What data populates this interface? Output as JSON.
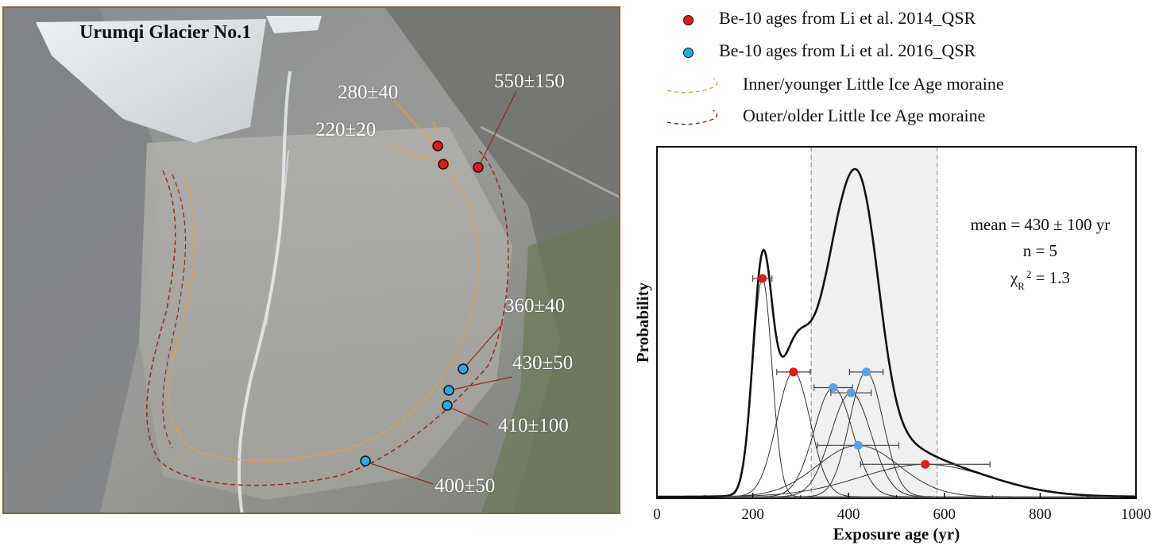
{
  "photo": {
    "title": "Urumqi Glacier No.1",
    "samples": [
      {
        "label": "280±40",
        "dataset": "Li et al. 2014"
      },
      {
        "label": "220±20",
        "dataset": "Li et al. 2014"
      },
      {
        "label": "550±150",
        "dataset": "Li et al. 2014"
      },
      {
        "label": "360±40",
        "dataset": "Li et al. 2016"
      },
      {
        "label": "430±50",
        "dataset": "Li et al. 2016"
      },
      {
        "label": "410±100",
        "dataset": "Li et al. 2016"
      },
      {
        "label": "400±50",
        "dataset": "Li et al. 2016"
      }
    ]
  },
  "legend": {
    "items": [
      {
        "label": "Be-10 ages from Li et al. 2014_QSR",
        "symbol": "red-dot"
      },
      {
        "label": "Be-10 ages from Li et al. 2016_QSR",
        "symbol": "blue-dot"
      },
      {
        "label": "Inner/younger Little Ice Age moraine",
        "symbol": "orange-dashed-line"
      },
      {
        "label": "Outer/older Little Ice Age moraine",
        "symbol": "brown-dashed-line"
      }
    ]
  },
  "colors": {
    "red_dot": "#e3191c",
    "blue_dot": "#29a9e0",
    "blue_point": "#5aa0e6",
    "inner_moraine": "#f0a030",
    "outer_moraine": "#8b2a1a",
    "frame": "#a05a2c",
    "shade": "#f0f0f0"
  },
  "chart_data": {
    "type": "line",
    "xlabel": "Exposure age (yr)",
    "ylabel": "Probability",
    "xlim": [
      0,
      1000
    ],
    "xticks": [
      0,
      200,
      400,
      600,
      800,
      1000
    ],
    "shaded_range": [
      322,
      585
    ],
    "stats": {
      "mean_line": "mean = 430 ± 100 yr",
      "n_line": "n = 5",
      "chi_symbol": "χ",
      "chi_sub": "R",
      "chi_sup": "2",
      "chi_value": " = 1.3"
    },
    "samples": [
      {
        "age": 220,
        "error": 20,
        "dataset": "Li et al. 2014"
      },
      {
        "age": 285,
        "error": 35,
        "dataset": "Li et al. 2014"
      },
      {
        "age": 560,
        "error": 135,
        "dataset": "Li et al. 2014"
      },
      {
        "age": 368,
        "error": 40,
        "dataset": "Li et al. 2016"
      },
      {
        "age": 437,
        "error": 35,
        "dataset": "Li et al. 2016"
      },
      {
        "age": 405,
        "error": 42,
        "dataset": "Li et al. 2016"
      },
      {
        "age": 420,
        "error": 85,
        "dataset": "Li et al. 2016"
      }
    ]
  }
}
